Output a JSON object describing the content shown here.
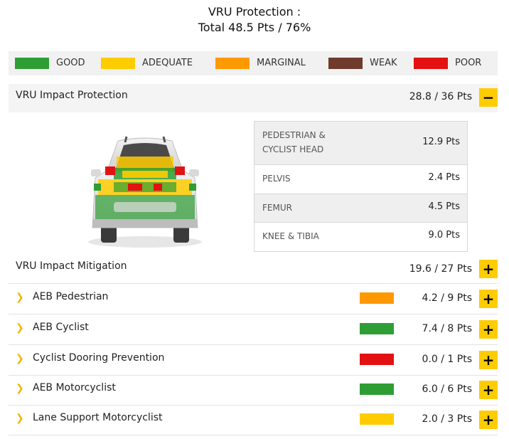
{
  "header": {
    "line1": "VRU Protection :",
    "line2": "Total 48.5 Pts / 76%"
  },
  "legend": [
    {
      "label": "GOOD",
      "color": "#2e9e34"
    },
    {
      "label": "ADEQUATE",
      "color": "#ffcc00"
    },
    {
      "label": "MARGINAL",
      "color": "#ff9900"
    },
    {
      "label": "WEAK",
      "color": "#6e3b2c"
    },
    {
      "label": "POOR",
      "color": "#e31111"
    }
  ],
  "impact": {
    "title": "VRU Impact Protection",
    "points": "28.8 / 36 Pts",
    "toggle": "−",
    "body_regions": [
      {
        "label_lines": [
          "PEDESTRIAN &",
          "CYCLIST HEAD"
        ],
        "points": "12.9 Pts",
        "shaded": true
      },
      {
        "label_lines": [
          "PELVIS"
        ],
        "points": "2.4 Pts",
        "shaded": false
      },
      {
        "label_lines": [
          "FEMUR"
        ],
        "points": "4.5 Pts",
        "shaded": true
      },
      {
        "label_lines": [
          "KNEE & TIBIA"
        ],
        "points": "9.0 Pts",
        "shaded": false
      }
    ]
  },
  "mitigation": {
    "title": "VRU Impact Mitigation",
    "points": "19.6 / 27 Pts",
    "toggle": "+",
    "items": [
      {
        "label": "AEB Pedestrian",
        "points": "4.2 / 9 Pts",
        "color": "#ff9900",
        "toggle": "+"
      },
      {
        "label": "AEB Cyclist",
        "points": "7.4 / 8 Pts",
        "color": "#2e9e34",
        "toggle": "+"
      },
      {
        "label": "Cyclist Dooring Prevention",
        "points": "0.0 / 1 Pts",
        "color": "#e31111",
        "toggle": "+"
      },
      {
        "label": "AEB Motorcyclist",
        "points": "6.0 / 6 Pts",
        "color": "#2e9e34",
        "toggle": "+"
      },
      {
        "label": "Lane Support Motorcyclist",
        "points": "2.0 / 3 Pts",
        "color": "#ffcc00",
        "toggle": "+"
      }
    ]
  }
}
